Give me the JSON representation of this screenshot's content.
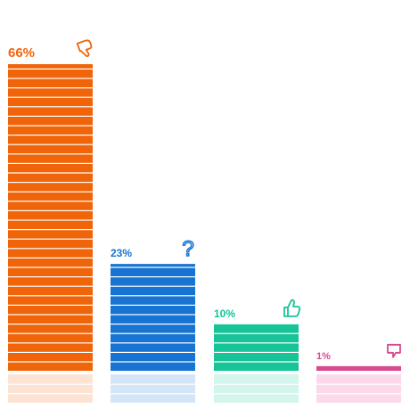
{
  "chart_data": {
    "type": "bar",
    "categories": [
      "thumbs-down",
      "question",
      "thumbs-up",
      "speech-bubble"
    ],
    "values": [
      66,
      23,
      10,
      1
    ],
    "labels": [
      "66%",
      "23%",
      "10%",
      "1%"
    ],
    "icons": [
      "thumbs-down-icon",
      "question-mark-icon",
      "thumbs-up-icon",
      "speech-bubble-icon"
    ],
    "colors": [
      "#F0640A",
      "#1874D2",
      "#16C497",
      "#D9498E"
    ],
    "reflection_colors": [
      "#FDE3D3",
      "#D4E5F7",
      "#D3F5EC",
      "#FBD9EA"
    ],
    "ylim": [
      0,
      66
    ],
    "grid": false,
    "legend": "none",
    "title": "",
    "xlabel": "",
    "ylabel": ""
  }
}
